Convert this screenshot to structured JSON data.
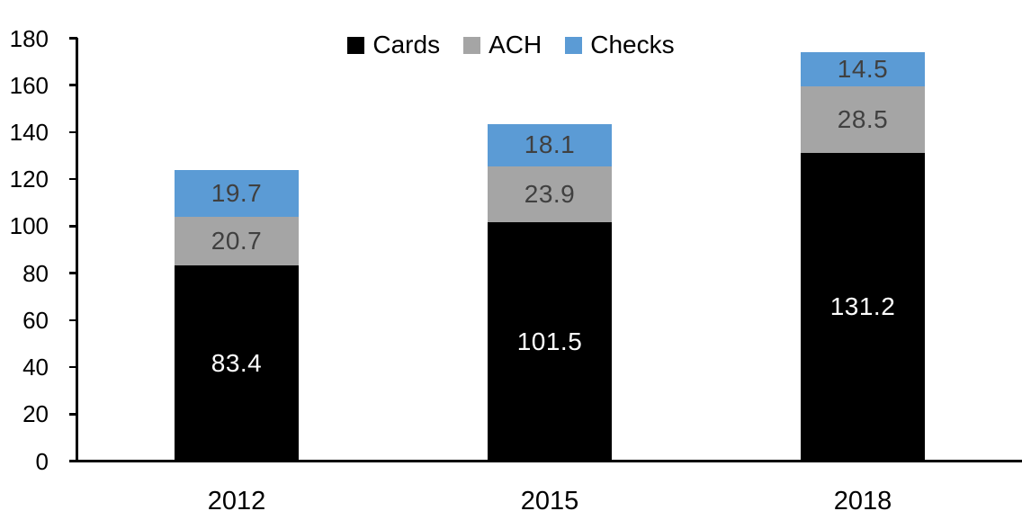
{
  "chart_data": {
    "type": "bar",
    "stacked": true,
    "title": "",
    "xlabel": "",
    "ylabel": "",
    "categories": [
      "2012",
      "2015",
      "2018"
    ],
    "series": [
      {
        "name": "Cards",
        "color": "#000000",
        "label_color": "#ffffff",
        "values": [
          83.4,
          101.5,
          131.2
        ]
      },
      {
        "name": "ACH",
        "color": "#a5a5a5",
        "label_color": "#404040",
        "values": [
          20.7,
          23.9,
          28.5
        ]
      },
      {
        "name": "Checks",
        "color": "#5b9bd5",
        "label_color": "#404040",
        "values": [
          19.7,
          18.1,
          14.5
        ]
      }
    ],
    "totals": [
      123.8,
      143.5,
      174.2
    ],
    "ylim": [
      0,
      180
    ],
    "yticks": [
      0,
      20,
      40,
      60,
      80,
      100,
      120,
      140,
      160,
      180
    ],
    "grid": false,
    "legend_position": "top",
    "legend_labels": [
      "Cards",
      "ACH",
      "Checks"
    ],
    "axis_color": "#000000",
    "plot_background": "#ffffff"
  }
}
